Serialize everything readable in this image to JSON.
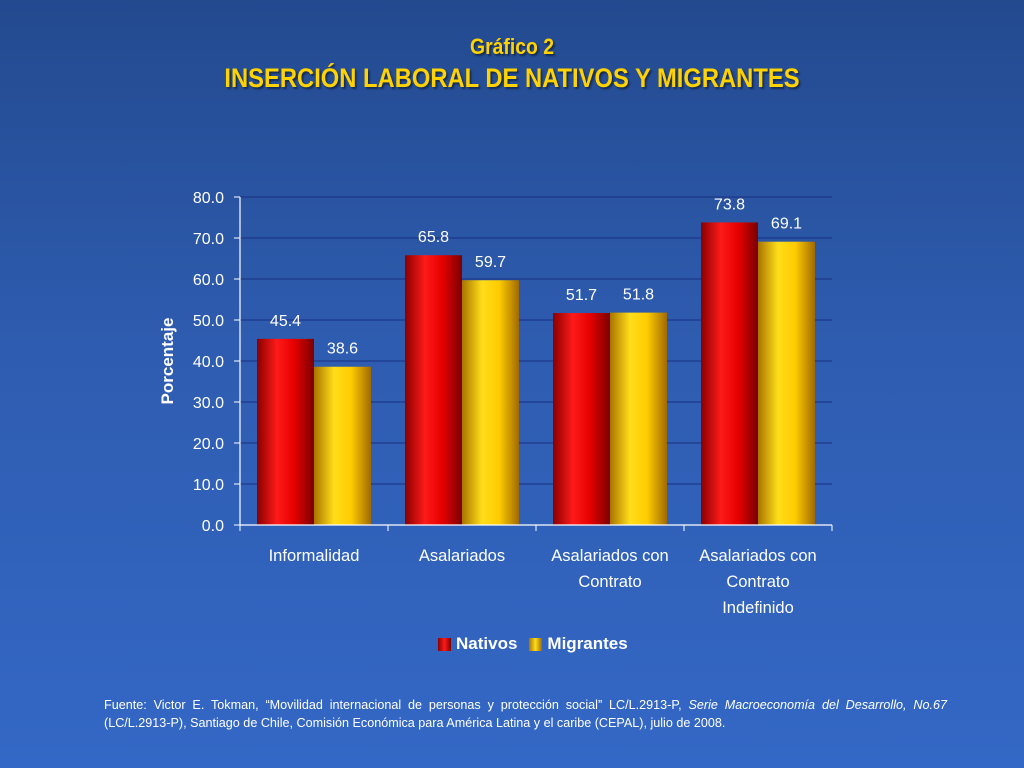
{
  "header": {
    "title_line1": "Gráfico 2",
    "title_line2": "INSERCIÓN LABORAL DE NATIVOS Y MIGRANTES"
  },
  "chart_data": {
    "type": "bar",
    "ylabel": "Porcentaje",
    "ylim": [
      0,
      80
    ],
    "yticks": [
      "0.0",
      "10.0",
      "20.0",
      "30.0",
      "40.0",
      "50.0",
      "60.0",
      "70.0",
      "80.0"
    ],
    "categories": [
      [
        "Informalidad"
      ],
      [
        "Asalariados"
      ],
      [
        "Asalariados con",
        "Contrato"
      ],
      [
        "Asalariados con",
        "Contrato",
        "Indefinido"
      ]
    ],
    "series": [
      {
        "name": "Nativos",
        "values": [
          45.4,
          65.8,
          51.7,
          73.8
        ],
        "labels": [
          "45.4",
          "65.8",
          "51.7",
          "73.8"
        ],
        "color": "#e00000"
      },
      {
        "name": "Migrantes",
        "values": [
          38.6,
          59.7,
          51.8,
          69.1
        ],
        "labels": [
          "38.6",
          "59.7",
          "51.8",
          "69.1"
        ],
        "color": "#ffcc00"
      }
    ],
    "grid": true,
    "legend": "bottom"
  },
  "source": {
    "p1": "Fuente: Victor E. Tokman, “Movilidad internacional de personas y protección social” LC/L.2913-P, ",
    "p2": "Serie Macroeconomía del Desarrollo, No.67 ",
    "p3": "(LC/L.2913-P), Santiago de Chile, Comisión Económica para América Latina y el caribe (CEPAL), julio de 2008."
  }
}
